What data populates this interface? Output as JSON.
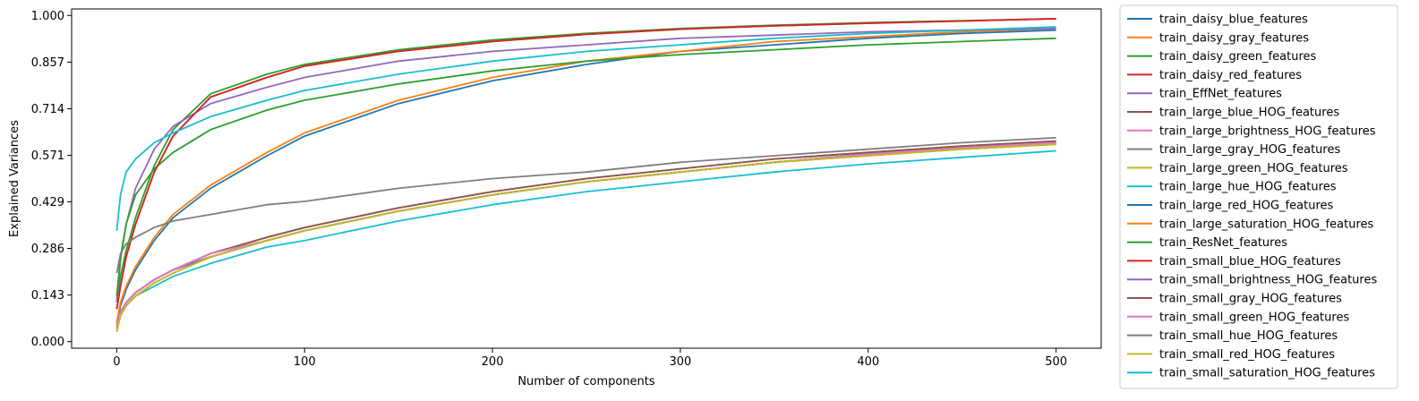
{
  "chart_data": {
    "type": "line",
    "title": "",
    "xlabel": "Number of components",
    "ylabel": "Explained Variances",
    "xlim": [
      -24,
      524
    ],
    "ylim": [
      -0.02,
      1.02
    ],
    "xticks": [
      0,
      100,
      200,
      300,
      400,
      500
    ],
    "yticks": [
      0.0,
      0.143,
      0.286,
      0.429,
      0.571,
      0.714,
      0.857,
      1.0
    ],
    "ytick_labels": [
      "0.000",
      "0.143",
      "0.286",
      "0.429",
      "0.571",
      "0.714",
      "0.857",
      "1.000"
    ],
    "grid": false,
    "legend_position": "outside right",
    "x": [
      0,
      2,
      5,
      10,
      20,
      30,
      50,
      80,
      100,
      150,
      200,
      250,
      300,
      350,
      400,
      450,
      500
    ],
    "series": [
      {
        "name": "train_daisy_blue_features",
        "color": "#1f77b4",
        "values": [
          0.05,
          0.11,
          0.16,
          0.22,
          0.31,
          0.38,
          0.47,
          0.57,
          0.63,
          0.73,
          0.8,
          0.85,
          0.89,
          0.91,
          0.93,
          0.945,
          0.955
        ]
      },
      {
        "name": "train_daisy_gray_features",
        "color": "#ff7f0e",
        "values": [
          0.06,
          0.12,
          0.17,
          0.23,
          0.32,
          0.39,
          0.48,
          0.58,
          0.64,
          0.74,
          0.81,
          0.86,
          0.89,
          0.92,
          0.935,
          0.95,
          0.96
        ]
      },
      {
        "name": "train_daisy_green_features",
        "color": "#2ca02c",
        "values": [
          0.13,
          0.2,
          0.28,
          0.38,
          0.54,
          0.65,
          0.76,
          0.82,
          0.85,
          0.895,
          0.925,
          0.945,
          0.96,
          0.97,
          0.978,
          0.984,
          0.99
        ]
      },
      {
        "name": "train_daisy_red_features",
        "color": "#d62728",
        "values": [
          0.1,
          0.17,
          0.26,
          0.36,
          0.52,
          0.63,
          0.75,
          0.81,
          0.845,
          0.89,
          0.92,
          0.942,
          0.958,
          0.968,
          0.976,
          0.983,
          0.99
        ]
      },
      {
        "name": "train_EffNet_features",
        "color": "#9467bd",
        "values": [
          0.12,
          0.25,
          0.36,
          0.47,
          0.59,
          0.66,
          0.73,
          0.78,
          0.81,
          0.86,
          0.89,
          0.91,
          0.93,
          0.94,
          0.95,
          0.955,
          0.96
        ]
      },
      {
        "name": "train_large_blue_HOG_features",
        "color": "#8c564b",
        "values": [
          0.05,
          0.09,
          0.12,
          0.15,
          0.19,
          0.22,
          0.27,
          0.32,
          0.35,
          0.41,
          0.46,
          0.5,
          0.53,
          0.56,
          0.58,
          0.6,
          0.615
        ]
      },
      {
        "name": "train_large_brightness_HOG_features",
        "color": "#e377c2",
        "values": [
          0.05,
          0.09,
          0.12,
          0.15,
          0.19,
          0.22,
          0.27,
          0.31,
          0.34,
          0.4,
          0.45,
          0.49,
          0.52,
          0.55,
          0.575,
          0.595,
          0.61
        ]
      },
      {
        "name": "train_large_gray_HOG_features",
        "color": "#7f7f7f",
        "values": [
          0.05,
          0.09,
          0.12,
          0.15,
          0.19,
          0.22,
          0.26,
          0.31,
          0.34,
          0.4,
          0.45,
          0.49,
          0.52,
          0.55,
          0.575,
          0.595,
          0.61
        ]
      },
      {
        "name": "train_large_green_HOG_features",
        "color": "#bcbd22",
        "values": [
          0.04,
          0.08,
          0.11,
          0.14,
          0.18,
          0.21,
          0.26,
          0.31,
          0.34,
          0.4,
          0.45,
          0.49,
          0.52,
          0.55,
          0.57,
          0.59,
          0.605
        ]
      },
      {
        "name": "train_large_hue_HOG_features",
        "color": "#17becf",
        "values": [
          0.04,
          0.08,
          0.11,
          0.14,
          0.17,
          0.2,
          0.24,
          0.29,
          0.31,
          0.37,
          0.42,
          0.46,
          0.49,
          0.52,
          0.545,
          0.565,
          0.585
        ]
      },
      {
        "name": "train_large_red_HOG_features",
        "color": "#1f77b4",
        "values": [
          0.05,
          0.09,
          0.12,
          0.15,
          0.19,
          0.22,
          0.26,
          0.31,
          0.34,
          0.4,
          0.45,
          0.49,
          0.52,
          0.55,
          0.575,
          0.595,
          0.61
        ]
      },
      {
        "name": "train_large_saturation_HOG_features",
        "color": "#ff7f0e",
        "values": [
          0.04,
          0.08,
          0.11,
          0.14,
          0.18,
          0.21,
          0.26,
          0.31,
          0.34,
          0.4,
          0.45,
          0.49,
          0.52,
          0.55,
          0.57,
          0.59,
          0.605
        ]
      },
      {
        "name": "train_ResNet_features",
        "color": "#2ca02c",
        "values": [
          0.14,
          0.26,
          0.36,
          0.45,
          0.53,
          0.58,
          0.65,
          0.71,
          0.74,
          0.79,
          0.83,
          0.86,
          0.88,
          0.895,
          0.91,
          0.92,
          0.93
        ]
      },
      {
        "name": "train_small_blue_HOG_features",
        "color": "#d62728",
        "values": [
          0.1,
          0.17,
          0.26,
          0.36,
          0.52,
          0.63,
          0.75,
          0.81,
          0.845,
          0.89,
          0.92,
          0.942,
          0.958,
          0.968,
          0.976,
          0.983,
          0.99
        ]
      },
      {
        "name": "train_small_brightness_HOG_features",
        "color": "#9467bd",
        "values": [
          0.05,
          0.09,
          0.12,
          0.15,
          0.19,
          0.22,
          0.26,
          0.31,
          0.34,
          0.4,
          0.45,
          0.49,
          0.52,
          0.55,
          0.575,
          0.595,
          0.61
        ]
      },
      {
        "name": "train_small_gray_HOG_features",
        "color": "#8c564b",
        "values": [
          0.05,
          0.09,
          0.12,
          0.15,
          0.19,
          0.22,
          0.27,
          0.32,
          0.35,
          0.41,
          0.46,
          0.5,
          0.53,
          0.56,
          0.58,
          0.6,
          0.615
        ]
      },
      {
        "name": "train_small_green_HOG_features",
        "color": "#e377c2",
        "values": [
          0.05,
          0.09,
          0.12,
          0.15,
          0.19,
          0.22,
          0.27,
          0.31,
          0.34,
          0.4,
          0.45,
          0.49,
          0.52,
          0.55,
          0.575,
          0.595,
          0.61
        ]
      },
      {
        "name": "train_small_hue_HOG_features",
        "color": "#7f7f7f",
        "values": [
          0.21,
          0.27,
          0.3,
          0.32,
          0.35,
          0.37,
          0.39,
          0.42,
          0.43,
          0.47,
          0.5,
          0.52,
          0.55,
          0.57,
          0.59,
          0.61,
          0.625
        ]
      },
      {
        "name": "train_small_red_HOG_features",
        "color": "#bcbd22",
        "values": [
          0.03,
          0.08,
          0.11,
          0.14,
          0.18,
          0.21,
          0.26,
          0.31,
          0.34,
          0.4,
          0.45,
          0.49,
          0.52,
          0.55,
          0.57,
          0.59,
          0.605
        ]
      },
      {
        "name": "train_small_saturation_HOG_features",
        "color": "#17becf",
        "values": [
          0.34,
          0.45,
          0.52,
          0.56,
          0.61,
          0.64,
          0.69,
          0.74,
          0.77,
          0.82,
          0.86,
          0.89,
          0.91,
          0.93,
          0.945,
          0.955,
          0.965
        ]
      }
    ]
  }
}
